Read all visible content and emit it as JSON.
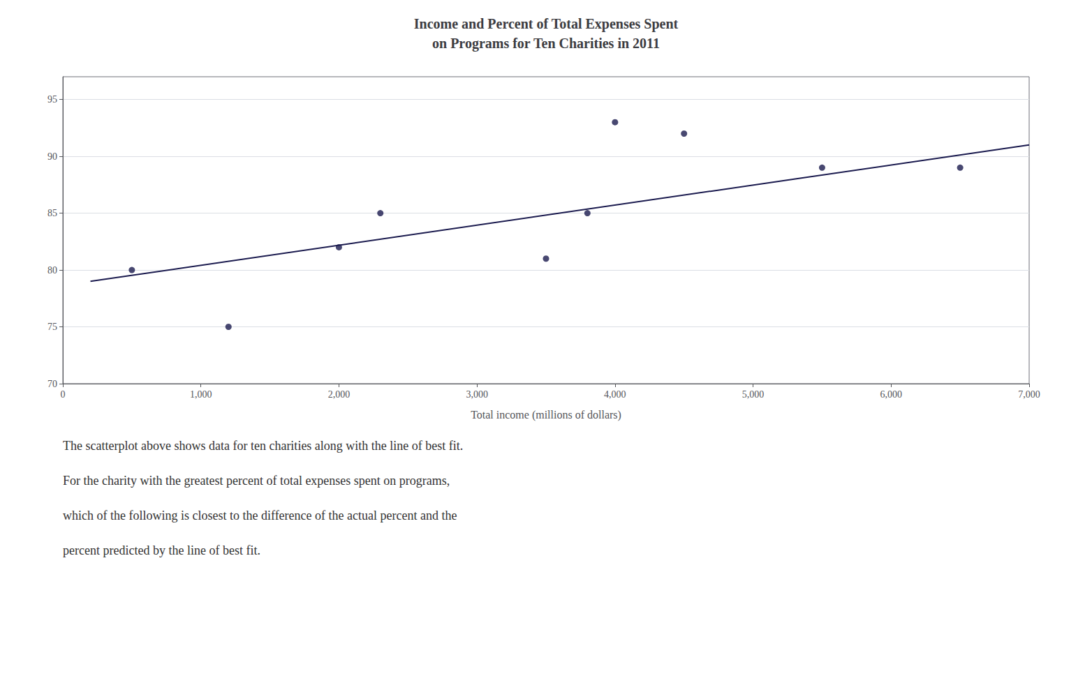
{
  "chart_data": {
    "type": "scatter",
    "title": "Income and Percent of Total Expenses Spent\non Programs for Ten Charities in 2011",
    "xlabel": "Total income (millions of dollars)",
    "annotations": [
      "The scatterplot above shows data for ten charities along with the line of best fit.",
      "For the charity with the greatest percent of total expenses spent on programs,",
      "which of the following is closest to the difference of the actual percent and the",
      "percent predicted by the line of best fit."
    ],
    "series": [
      {
        "type": "scatter",
        "color": "#1a1a4e",
        "x": [
          500,
          1200,
          2000,
          2300,
          3500,
          3800,
          4000,
          4500,
          5500,
          6500
        ],
        "values": [
          80,
          75,
          82,
          85,
          81,
          85,
          93,
          92,
          89,
          89
        ]
      },
      {
        "type": "line",
        "color": "#1a1a4e",
        "x": [
          200,
          7000
        ],
        "values": [
          79,
          91
        ]
      }
    ],
    "xlim": [
      0,
      7000
    ],
    "ylim": [
      70,
      97
    ],
    "xticks": [
      0,
      {
        "value": 1000,
        "label": "1,000"
      },
      {
        "value": 2000,
        "label": "2,000"
      },
      {
        "value": 3000,
        "label": "3,000"
      },
      {
        "value": 4000,
        "label": "4,000"
      },
      {
        "value": 5000,
        "label": "5,000"
      },
      {
        "value": 6000,
        "label": "6,000"
      },
      {
        "value": 7000,
        "label": "7,000"
      }
    ],
    "yticks": [
      70,
      75,
      80,
      85,
      90,
      95
    ],
    "grid": true
  }
}
